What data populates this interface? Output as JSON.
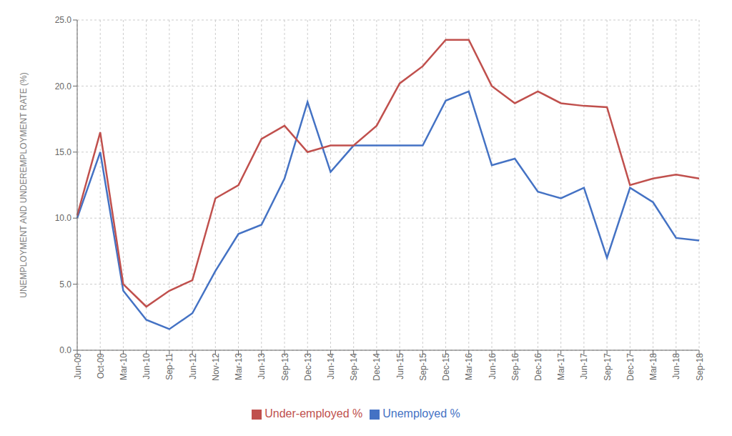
{
  "chart_data": {
    "type": "line",
    "ylabel": "UNEMPLOYMENT AND UNDEREMPLOYMENT RATE (%)",
    "categories": [
      "Jun-09",
      "Oct-09",
      "Mar-10",
      "Jun-10",
      "Sep-11",
      "Jun-12",
      "Nov-12",
      "Mar-13",
      "Jun-13",
      "Sep-13",
      "Dec-13",
      "Jun-14",
      "Sep-14",
      "Dec-14",
      "Jun-15",
      "Sep-15",
      "Dec-15",
      "Mar-16",
      "Jun-16",
      "Sep-16",
      "Dec-16",
      "Mar-17",
      "Jun-17",
      "Sep-17",
      "Dec-17",
      "Mar-18",
      "Jun-18",
      "Sep-18"
    ],
    "series": [
      {
        "name": "Unemployed %",
        "color": "#4472C4",
        "values": [
          10.0,
          15.0,
          4.5,
          2.3,
          1.6,
          2.8,
          6.0,
          8.8,
          9.5,
          13.0,
          18.8,
          13.5,
          15.5,
          15.5,
          15.5,
          15.5,
          18.9,
          19.6,
          14.0,
          14.5,
          12.0,
          11.5,
          12.3,
          7.0,
          12.3,
          11.2,
          8.5,
          8.3
        ]
      },
      {
        "name": "Under-employed %",
        "color": "#C0504D",
        "values": [
          10.2,
          16.5,
          5.0,
          3.3,
          4.5,
          5.3,
          11.5,
          12.5,
          16.0,
          17.0,
          15.0,
          15.5,
          15.5,
          17.0,
          20.2,
          21.5,
          23.5,
          23.5,
          20.0,
          18.7,
          19.6,
          18.7,
          18.5,
          18.4,
          12.5,
          13.0,
          13.3,
          13.0
        ]
      }
    ],
    "ylim": [
      0,
      25
    ],
    "yticks": [
      {
        "value": 0,
        "label": "0.0"
      },
      {
        "value": 5,
        "label": "5.0"
      },
      {
        "value": 10,
        "label": "10.0"
      },
      {
        "value": 15,
        "label": "15.0"
      },
      {
        "value": 20,
        "label": "20.0"
      },
      {
        "value": 25,
        "label": "25.0"
      }
    ],
    "grid": true,
    "legend": "bottom"
  }
}
